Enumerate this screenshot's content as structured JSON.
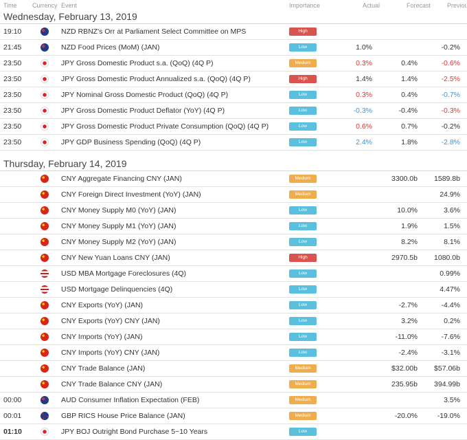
{
  "header": {
    "time": "Time",
    "currency": "Currency",
    "event": "Event",
    "importance": "Importance",
    "actual": "Actual",
    "forecast": "Forecast",
    "previous": "Previous"
  },
  "days": [
    {
      "label": "Wednesday, February 13, 2019",
      "rows": [
        {
          "time": "19:10",
          "cur": "NZD",
          "event": "NZD RBNZ's Orr at Parliament Select Committee on MPS",
          "imp": "High",
          "actual": "",
          "actual_color": "",
          "forecast": "",
          "previous": "",
          "previous_color": ""
        },
        {
          "time": "21:45",
          "cur": "NZD",
          "event": "NZD Food Prices (MoM) (JAN)",
          "imp": "Low",
          "actual": "1.0%",
          "actual_color": "",
          "forecast": "",
          "previous": "-0.2%",
          "previous_color": ""
        },
        {
          "time": "23:50",
          "cur": "JPY",
          "event": "JPY Gross Domestic Product s.a. (QoQ) (4Q P)",
          "imp": "Medium",
          "actual": "0.3%",
          "actual_color": "red",
          "forecast": "0.4%",
          "previous": "-0.6%",
          "previous_color": "red"
        },
        {
          "time": "23:50",
          "cur": "JPY",
          "event": "JPY Gross Domestic Product Annualized s.a. (QoQ) (4Q P)",
          "imp": "High",
          "actual": "1.4%",
          "actual_color": "",
          "forecast": "1.4%",
          "previous": "-2.5%",
          "previous_color": "red"
        },
        {
          "time": "23:50",
          "cur": "JPY",
          "event": "JPY Nominal Gross Domestic Product (QoQ) (4Q P)",
          "imp": "Low",
          "actual": "0.3%",
          "actual_color": "red",
          "forecast": "0.4%",
          "previous": "-0.7%",
          "previous_color": "blue"
        },
        {
          "time": "23:50",
          "cur": "JPY",
          "event": "JPY Gross Domestic Product Deflator (YoY) (4Q P)",
          "imp": "Low",
          "actual": "-0.3%",
          "actual_color": "blue",
          "forecast": "-0.4%",
          "previous": "-0.3%",
          "previous_color": "red"
        },
        {
          "time": "23:50",
          "cur": "JPY",
          "event": "JPY Gross Domestic Product Private Consumption (QoQ) (4Q P)",
          "imp": "Low",
          "actual": "0.6%",
          "actual_color": "red",
          "forecast": "0.7%",
          "previous": "-0.2%",
          "previous_color": ""
        },
        {
          "time": "23:50",
          "cur": "JPY",
          "event": "JPY GDP Business Spending (QoQ) (4Q P)",
          "imp": "Low",
          "actual": "2.4%",
          "actual_color": "blue",
          "forecast": "1.8%",
          "previous": "-2.8%",
          "previous_color": "blue"
        }
      ]
    },
    {
      "label": "Thursday, February 14, 2019",
      "rows": [
        {
          "time": "",
          "cur": "CNY",
          "event": "CNY Aggregate Financing CNY (JAN)",
          "imp": "Medium",
          "actual": "",
          "actual_color": "",
          "forecast": "3300.0b",
          "previous": "1589.8b",
          "previous_color": ""
        },
        {
          "time": "",
          "cur": "CNY",
          "event": "CNY Foreign Direct Investment (YoY) (JAN)",
          "imp": "Medium",
          "actual": "",
          "actual_color": "",
          "forecast": "",
          "previous": "24.9%",
          "previous_color": ""
        },
        {
          "time": "",
          "cur": "CNY",
          "event": "CNY Money Supply M0 (YoY) (JAN)",
          "imp": "Low",
          "actual": "",
          "actual_color": "",
          "forecast": "10.0%",
          "previous": "3.6%",
          "previous_color": ""
        },
        {
          "time": "",
          "cur": "CNY",
          "event": "CNY Money Supply M1 (YoY) (JAN)",
          "imp": "Low",
          "actual": "",
          "actual_color": "",
          "forecast": "1.9%",
          "previous": "1.5%",
          "previous_color": ""
        },
        {
          "time": "",
          "cur": "CNY",
          "event": "CNY Money Supply M2 (YoY) (JAN)",
          "imp": "Low",
          "actual": "",
          "actual_color": "",
          "forecast": "8.2%",
          "previous": "8.1%",
          "previous_color": ""
        },
        {
          "time": "",
          "cur": "CNY",
          "event": "CNY New Yuan Loans CNY (JAN)",
          "imp": "High",
          "actual": "",
          "actual_color": "",
          "forecast": "2970.5b",
          "previous": "1080.0b",
          "previous_color": ""
        },
        {
          "time": "",
          "cur": "USD",
          "event": "USD MBA Mortgage Foreclosures (4Q)",
          "imp": "Low",
          "actual": "",
          "actual_color": "",
          "forecast": "",
          "previous": "0.99%",
          "previous_color": ""
        },
        {
          "time": "",
          "cur": "USD",
          "event": "USD Mortgage Delinquencies (4Q)",
          "imp": "Low",
          "actual": "",
          "actual_color": "",
          "forecast": "",
          "previous": "4.47%",
          "previous_color": ""
        },
        {
          "time": "",
          "cur": "CNY",
          "event": "CNY Exports (YoY) (JAN)",
          "imp": "Low",
          "actual": "",
          "actual_color": "",
          "forecast": "-2.7%",
          "previous": "-4.4%",
          "previous_color": ""
        },
        {
          "time": "",
          "cur": "CNY",
          "event": "CNY Exports (YoY) CNY (JAN)",
          "imp": "Low",
          "actual": "",
          "actual_color": "",
          "forecast": "3.2%",
          "previous": "0.2%",
          "previous_color": ""
        },
        {
          "time": "",
          "cur": "CNY",
          "event": "CNY Imports (YoY) (JAN)",
          "imp": "Low",
          "actual": "",
          "actual_color": "",
          "forecast": "-11.0%",
          "previous": "-7.6%",
          "previous_color": ""
        },
        {
          "time": "",
          "cur": "CNY",
          "event": "CNY Imports (YoY) CNY (JAN)",
          "imp": "Low",
          "actual": "",
          "actual_color": "",
          "forecast": "-2.4%",
          "previous": "-3.1%",
          "previous_color": ""
        },
        {
          "time": "",
          "cur": "CNY",
          "event": "CNY Trade Balance (JAN)",
          "imp": "Medium",
          "actual": "",
          "actual_color": "",
          "forecast": "$32.00b",
          "previous": "$57.06b",
          "previous_color": ""
        },
        {
          "time": "",
          "cur": "CNY",
          "event": "CNY Trade Balance CNY (JAN)",
          "imp": "Medium",
          "actual": "",
          "actual_color": "",
          "forecast": "235.95b",
          "previous": "394.99b",
          "previous_color": ""
        },
        {
          "time": "00:00",
          "cur": "AUD",
          "event": "AUD Consumer Inflation Expectation (FEB)",
          "imp": "Medium",
          "actual": "",
          "actual_color": "",
          "forecast": "",
          "previous": "3.5%",
          "previous_color": ""
        },
        {
          "time": "00:01",
          "cur": "GBP",
          "event": "GBP RICS House Price Balance (JAN)",
          "imp": "Medium",
          "actual": "",
          "actual_color": "",
          "forecast": "-20.0%",
          "previous": "-19.0%",
          "previous_color": ""
        },
        {
          "time": "01:10",
          "cur": "JPY",
          "event": "JPY BOJ Outright Bond Purchase 5~10 Years",
          "imp": "Low",
          "actual": "",
          "actual_color": "",
          "forecast": "",
          "previous": "",
          "previous_color": "",
          "bold_time": true
        }
      ]
    }
  ]
}
